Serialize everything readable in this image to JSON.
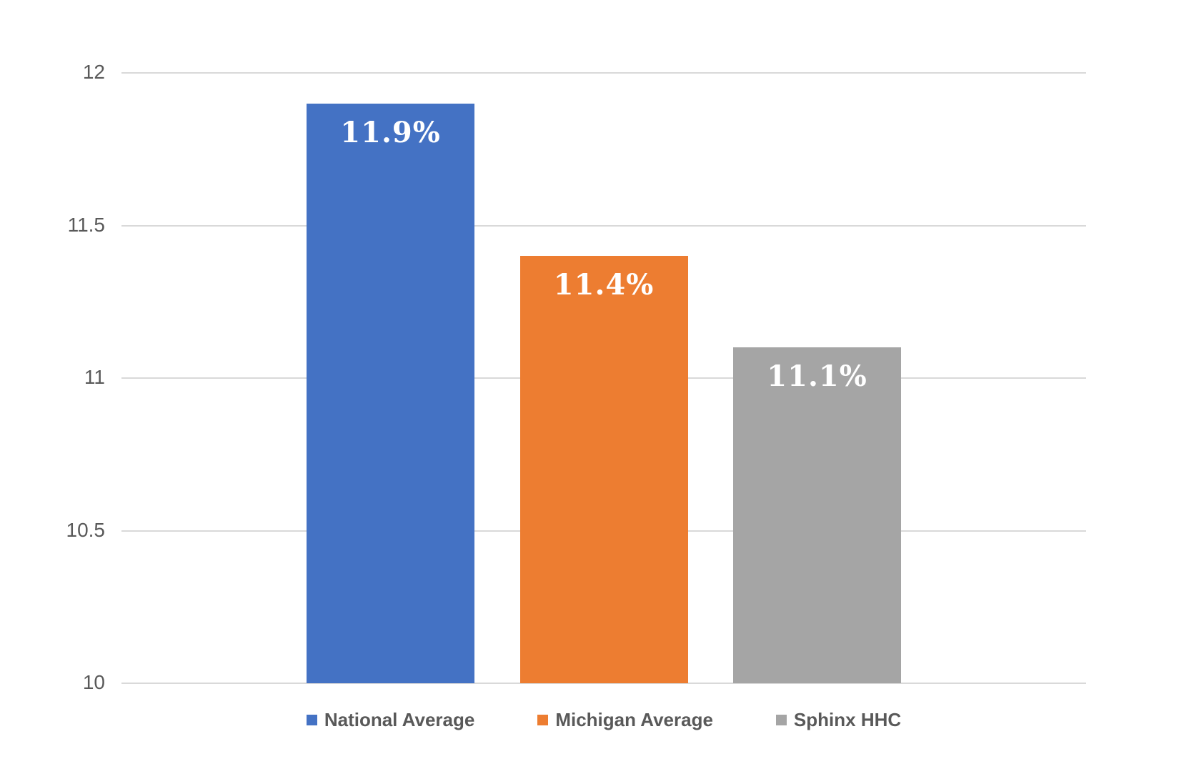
{
  "chart_data": {
    "type": "bar",
    "title": "",
    "xlabel": "",
    "ylabel": "",
    "categories": [
      "National Average",
      "Michigan Average",
      "Sphinx HHC"
    ],
    "values": [
      11.9,
      11.4,
      11.1
    ],
    "data_labels": [
      "11.9%",
      "11.4%",
      "11.1%"
    ],
    "bar_colors": [
      "#4472C4",
      "#ED7D31",
      "#A5A5A5"
    ],
    "ylim": [
      10,
      12
    ],
    "yticks": [
      10,
      10.5,
      11,
      11.5,
      12
    ],
    "ytick_labels": [
      "10",
      "10.5",
      "11",
      "11.5",
      "12"
    ],
    "grid": true,
    "legend_position": "bottom",
    "legend": [
      {
        "label": "National Average",
        "color": "#4472C4"
      },
      {
        "label": "Michigan Average",
        "color": "#ED7D31"
      },
      {
        "label": "Sphinx HHC",
        "color": "#A5A5A5"
      }
    ]
  },
  "colors": {
    "background": "#FFFFFF",
    "gridline": "#D9D9D9",
    "tick_text": "#595959",
    "legend_text": "#595959",
    "data_label_text": "#FFFFFF"
  }
}
